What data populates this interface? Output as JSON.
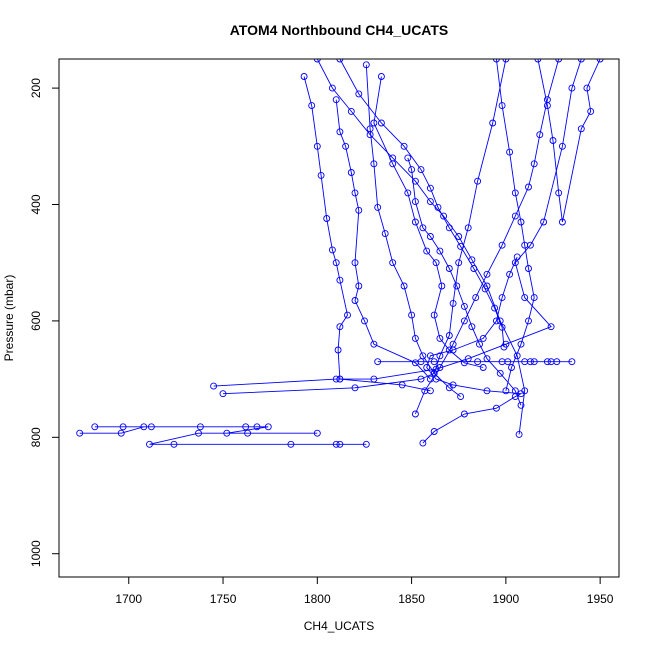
{
  "chart_data": {
    "type": "line",
    "title": "ATOM4 Northbound CH4_UCATS",
    "xlabel": "CH4_UCATS",
    "ylabel": "Pressure (mbar)",
    "xlim": [
      1663,
      1960
    ],
    "ylim": [
      1040,
      150
    ],
    "y_reversed": true,
    "x_ticks": [
      1700,
      1750,
      1800,
      1850,
      1900,
      1950
    ],
    "y_ticks": [
      200,
      400,
      600,
      800,
      1000
    ],
    "grid": false,
    "legend": "none",
    "colors": {
      "series": "#0000ff",
      "axis": "#000000"
    },
    "marker": "open-circle",
    "series": [
      {
        "segment": "low-altitude-approach",
        "points": [
          [
            1674,
            793
          ],
          [
            1696,
            793
          ],
          [
            1708,
            782
          ],
          [
            1682,
            782
          ],
          [
            1697,
            782
          ],
          [
            1712,
            782
          ],
          [
            1738,
            782
          ],
          [
            1762,
            782
          ],
          [
            1768,
            782
          ],
          [
            1774,
            782
          ],
          [
            1752,
            793
          ],
          [
            1763,
            793
          ],
          [
            1800,
            793
          ],
          [
            1737,
            793
          ],
          [
            1711,
            812
          ],
          [
            1724,
            812
          ],
          [
            1786,
            812
          ],
          [
            1810,
            812
          ],
          [
            1812,
            812
          ],
          [
            1826,
            812
          ]
        ]
      },
      {
        "segment": "profile-a",
        "points": [
          [
            1745,
            712
          ],
          [
            1810,
            700
          ],
          [
            1812,
            700
          ],
          [
            1830,
            700
          ],
          [
            1863,
            683
          ],
          [
            1880,
            665
          ],
          [
            1900,
            640
          ],
          [
            1924,
            610
          ],
          [
            1910,
            560
          ],
          [
            1905,
            500
          ],
          [
            1913,
            470
          ],
          [
            1920,
            430
          ],
          [
            1930,
            300
          ],
          [
            1935,
            200
          ],
          [
            1940,
            150
          ]
        ]
      },
      {
        "segment": "profile-b",
        "points": [
          [
            1750,
            725
          ],
          [
            1820,
            715
          ],
          [
            1855,
            700
          ],
          [
            1862,
            690
          ],
          [
            1865,
            660
          ],
          [
            1870,
            625
          ],
          [
            1872,
            570
          ],
          [
            1875,
            500
          ],
          [
            1880,
            440
          ],
          [
            1885,
            360
          ],
          [
            1893,
            260
          ],
          [
            1900,
            150
          ]
        ]
      },
      {
        "segment": "profile-c",
        "points": [
          [
            1793,
            180
          ],
          [
            1797,
            230
          ],
          [
            1800,
            300
          ],
          [
            1802,
            350
          ],
          [
            1805,
            424
          ],
          [
            1808,
            478
          ],
          [
            1810,
            500
          ],
          [
            1812,
            530
          ],
          [
            1816,
            590
          ],
          [
            1812,
            610
          ],
          [
            1811,
            650
          ],
          [
            1812,
            700
          ],
          [
            1845,
            710
          ],
          [
            1860,
            720
          ]
        ]
      },
      {
        "segment": "profile-d",
        "points": [
          [
            1810,
            220
          ],
          [
            1812,
            275
          ],
          [
            1815,
            300
          ],
          [
            1818,
            345
          ],
          [
            1820,
            380
          ],
          [
            1822,
            410
          ],
          [
            1820,
            500
          ],
          [
            1822,
            540
          ],
          [
            1820,
            565
          ],
          [
            1825,
            600
          ],
          [
            1830,
            640
          ],
          [
            1852,
            672
          ],
          [
            1860,
            700
          ]
        ]
      },
      {
        "segment": "profile-e",
        "points": [
          [
            1826,
            160
          ],
          [
            1828,
            270
          ],
          [
            1830,
            330
          ],
          [
            1832,
            405
          ],
          [
            1836,
            450
          ],
          [
            1840,
            500
          ],
          [
            1846,
            540
          ],
          [
            1850,
            590
          ],
          [
            1852,
            630
          ],
          [
            1856,
            660
          ],
          [
            1862,
            690
          ],
          [
            1870,
            715
          ],
          [
            1876,
            730
          ]
        ]
      },
      {
        "segment": "profile-f",
        "points": [
          [
            1834,
            180
          ],
          [
            1830,
            260
          ],
          [
            1840,
            330
          ],
          [
            1848,
            380
          ],
          [
            1852,
            430
          ],
          [
            1858,
            480
          ],
          [
            1863,
            500
          ],
          [
            1866,
            540
          ],
          [
            1862,
            590
          ],
          [
            1865,
            630
          ],
          [
            1870,
            650
          ],
          [
            1878,
            672
          ],
          [
            1888,
            680
          ]
        ]
      },
      {
        "segment": "profile-g",
        "points": [
          [
            1848,
            320
          ],
          [
            1850,
            340
          ],
          [
            1852,
            395
          ],
          [
            1856,
            440
          ],
          [
            1860,
            455
          ],
          [
            1865,
            480
          ],
          [
            1870,
            510
          ],
          [
            1874,
            540
          ],
          [
            1878,
            575
          ],
          [
            1882,
            610
          ],
          [
            1886,
            640
          ],
          [
            1890,
            665
          ],
          [
            1897,
            690
          ],
          [
            1905,
            720
          ],
          [
            1908,
            745
          ]
        ]
      },
      {
        "segment": "level-leg-a",
        "points": [
          [
            1832,
            670
          ],
          [
            1855,
            670
          ],
          [
            1862,
            670
          ],
          [
            1885,
            670
          ],
          [
            1898,
            670
          ],
          [
            1901,
            670
          ],
          [
            1910,
            670
          ],
          [
            1913,
            670
          ],
          [
            1915,
            670
          ],
          [
            1922,
            670
          ],
          [
            1924,
            670
          ],
          [
            1927,
            670
          ],
          [
            1935,
            670
          ]
        ]
      },
      {
        "segment": "profile-h",
        "points": [
          [
            1895,
            150
          ],
          [
            1898,
            230
          ],
          [
            1902,
            310
          ],
          [
            1905,
            380
          ],
          [
            1908,
            430
          ],
          [
            1910,
            470
          ],
          [
            1912,
            510
          ],
          [
            1915,
            560
          ],
          [
            1912,
            600
          ],
          [
            1908,
            640
          ],
          [
            1903,
            680
          ],
          [
            1900,
            720
          ]
        ]
      },
      {
        "segment": "profile-i",
        "points": [
          [
            1917,
            150
          ],
          [
            1922,
            230
          ],
          [
            1925,
            290
          ],
          [
            1928,
            380
          ],
          [
            1930,
            430
          ],
          [
            1940,
            270
          ],
          [
            1945,
            240
          ],
          [
            1943,
            200
          ],
          [
            1950,
            150
          ]
        ]
      },
      {
        "segment": "profile-j",
        "points": [
          [
            1856,
            810
          ],
          [
            1862,
            790
          ],
          [
            1878,
            760
          ],
          [
            1895,
            750
          ],
          [
            1905,
            730
          ],
          [
            1908,
            725
          ],
          [
            1890,
            720
          ],
          [
            1872,
            710
          ],
          [
            1863,
            700
          ],
          [
            1858,
            680
          ],
          [
            1860,
            660
          ],
          [
            1872,
            650
          ],
          [
            1888,
            630
          ],
          [
            1895,
            600
          ],
          [
            1898,
            560
          ],
          [
            1902,
            520
          ],
          [
            1906,
            490
          ]
        ]
      },
      {
        "segment": "profile-k",
        "points": [
          [
            1800,
            150
          ],
          [
            1808,
            200
          ],
          [
            1818,
            240
          ],
          [
            1828,
            280
          ],
          [
            1840,
            320
          ],
          [
            1852,
            360
          ],
          [
            1860,
            395
          ],
          [
            1867,
            420
          ],
          [
            1875,
            455
          ],
          [
            1882,
            495
          ],
          [
            1890,
            540
          ],
          [
            1897,
            600
          ],
          [
            1906,
            660
          ],
          [
            1910,
            720
          ],
          [
            1907,
            795
          ]
        ]
      },
      {
        "segment": "profile-l",
        "points": [
          [
            1812,
            150
          ],
          [
            1822,
            210
          ],
          [
            1834,
            260
          ],
          [
            1846,
            300
          ],
          [
            1855,
            340
          ],
          [
            1860,
            372
          ],
          [
            1864,
            405
          ],
          [
            1870,
            440
          ],
          [
            1876,
            472
          ],
          [
            1883,
            510
          ],
          [
            1889,
            545
          ],
          [
            1894,
            578
          ],
          [
            1898,
            611
          ],
          [
            1899,
            645
          ]
        ]
      },
      {
        "segment": "profile-m",
        "points": [
          [
            1928,
            150
          ],
          [
            1922,
            220
          ],
          [
            1918,
            280
          ],
          [
            1915,
            330
          ],
          [
            1912,
            370
          ],
          [
            1905,
            420
          ],
          [
            1898,
            470
          ],
          [
            1890,
            520
          ],
          [
            1884,
            560
          ],
          [
            1878,
            600
          ],
          [
            1872,
            640
          ],
          [
            1865,
            680
          ],
          [
            1857,
            720
          ],
          [
            1852,
            760
          ]
        ]
      }
    ]
  }
}
